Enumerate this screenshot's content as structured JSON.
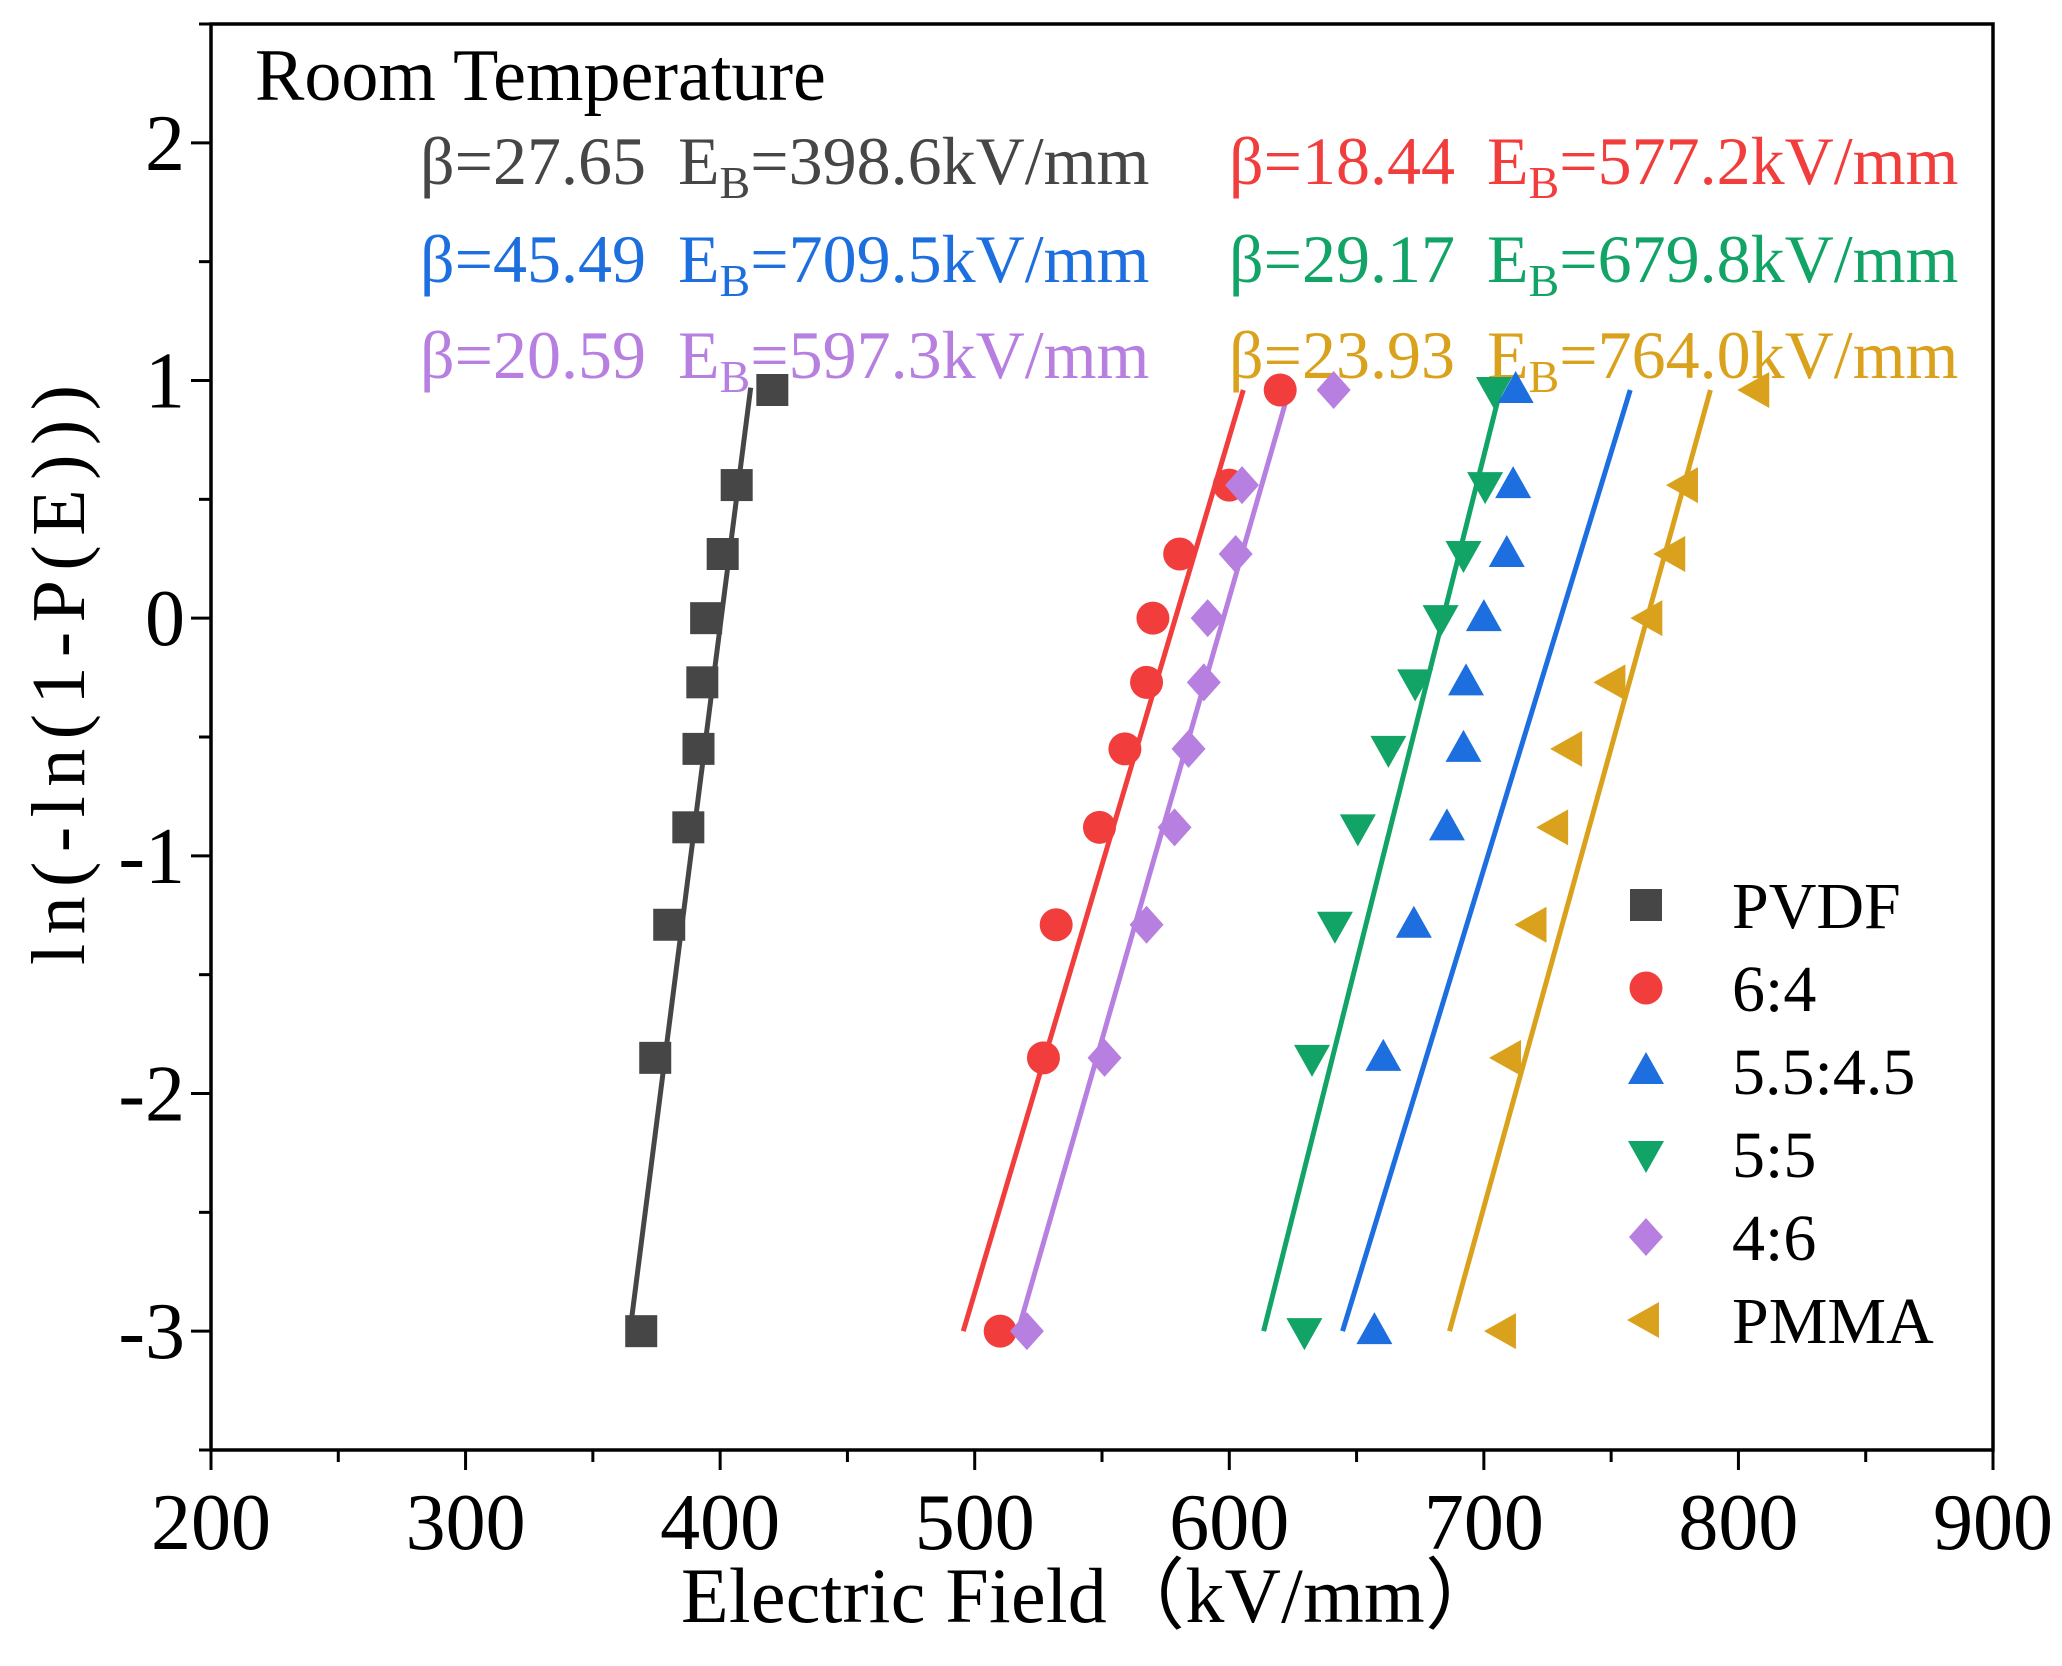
{
  "chart_data": {
    "type": "scatter",
    "title": "Room Temperature",
    "xlabel": "Electric Field（kV/mm）",
    "ylabel": "ln(-ln(1-P(E)))",
    "xlim": [
      200,
      900
    ],
    "ylim": [
      -3.5,
      2.5
    ],
    "x_ticks": [
      200,
      300,
      400,
      500,
      600,
      700,
      800,
      900
    ],
    "y_ticks": [
      -3,
      -2,
      -1,
      0,
      1,
      2
    ],
    "x_minor_step": 50,
    "y_minor_step": 0.5,
    "grid": false,
    "legend_position": "bottom-right",
    "series": [
      {
        "name": "PVDF",
        "marker": "square",
        "color": "#464646",
        "x": [
          369,
          374.5,
          380,
          387.5,
          391.5,
          393,
          394.5,
          401,
          406.5,
          420.5
        ],
        "y": [
          -3.0,
          -1.85,
          -1.29,
          -0.88,
          -0.55,
          -0.27,
          0.0,
          0.27,
          0.56,
          0.96
        ],
        "fit": {
          "beta": "β=27.65",
          "eb_symbol": "E",
          "eb_sub": "B",
          "eb_value": "=398.6kV/mm",
          "line_x": [
            364,
            412
          ],
          "line_y": [
            -3.05,
            0.97
          ]
        }
      },
      {
        "name": "6:4",
        "marker": "circle",
        "color": "#f23d3d",
        "x": [
          510,
          527,
          532,
          549,
          559,
          567.5,
          570,
          580.5,
          600,
          620
        ],
        "y": [
          -3.0,
          -1.85,
          -1.29,
          -0.88,
          -0.55,
          -0.27,
          0.0,
          0.27,
          0.56,
          0.96
        ],
        "fit": {
          "beta": "β=18.44",
          "eb_symbol": "E",
          "eb_sub": "B",
          "eb_value": "=577.2kV/mm",
          "line_x": [
            495.5,
            605.5
          ],
          "line_y": [
            -3.0,
            0.96
          ]
        }
      },
      {
        "name": "5.5:4.5",
        "marker": "triangle-up",
        "color": "#1d6fdf",
        "x": [
          657,
          660.5,
          672.5,
          685.5,
          692,
          693,
          700,
          709,
          711.5,
          712.5
        ],
        "y": [
          -3.0,
          -1.85,
          -1.29,
          -0.88,
          -0.55,
          -0.27,
          0.0,
          0.27,
          0.56,
          0.96
        ],
        "fit": {
          "beta": "β=45.49",
          "eb_symbol": "E",
          "eb_sub": "B",
          "eb_value": "=709.5kV/mm",
          "line_x": [
            644.5,
            757.5
          ],
          "line_y": [
            -3.0,
            0.96
          ]
        }
      },
      {
        "name": "5:5",
        "marker": "triangle-down",
        "color": "#11a466",
        "x": [
          629.5,
          632.5,
          641.5,
          650.5,
          662.5,
          673,
          683,
          692,
          700.5,
          704
        ],
        "y": [
          -3.0,
          -1.85,
          -1.29,
          -0.88,
          -0.55,
          -0.27,
          0.0,
          0.27,
          0.56,
          0.96
        ],
        "fit": {
          "beta": "β=29.17",
          "eb_symbol": "E",
          "eb_sub": "B",
          "eb_value": "=679.8kV/mm",
          "line_x": [
            613.5,
            706.5
          ],
          "line_y": [
            -3.0,
            0.96
          ]
        }
      },
      {
        "name": "4:6",
        "marker": "diamond",
        "color": "#b77fe0",
        "x": [
          520.5,
          551,
          567.5,
          578.5,
          584,
          590,
          591.5,
          602.5,
          605,
          641
        ],
        "y": [
          -3.0,
          -1.85,
          -1.29,
          -0.88,
          -0.55,
          -0.27,
          0.0,
          0.27,
          0.56,
          0.96
        ],
        "fit": {
          "beta": "β=20.59",
          "eb_symbol": "E",
          "eb_sub": "B",
          "eb_value": "=597.3kV/mm",
          "line_x": [
            517,
            623.5
          ],
          "line_y": [
            -3.0,
            0.96
          ]
        }
      },
      {
        "name": "PMMA",
        "marker": "triangle-left",
        "color": "#daa11d",
        "x": [
          707.5,
          709.5,
          719.5,
          728,
          733.5,
          750.5,
          765,
          774,
          779,
          807
        ],
        "y": [
          -3.0,
          -1.85,
          -1.29,
          -0.88,
          -0.55,
          -0.27,
          0.0,
          0.27,
          0.56,
          0.96
        ],
        "fit": {
          "beta": "β=23.93",
          "eb_symbol": "E",
          "eb_sub": "B",
          "eb_value": "=764.0kV/mm",
          "line_x": [
            686.5,
            789
          ],
          "line_y": [
            -3.0,
            0.96
          ]
        }
      }
    ]
  }
}
